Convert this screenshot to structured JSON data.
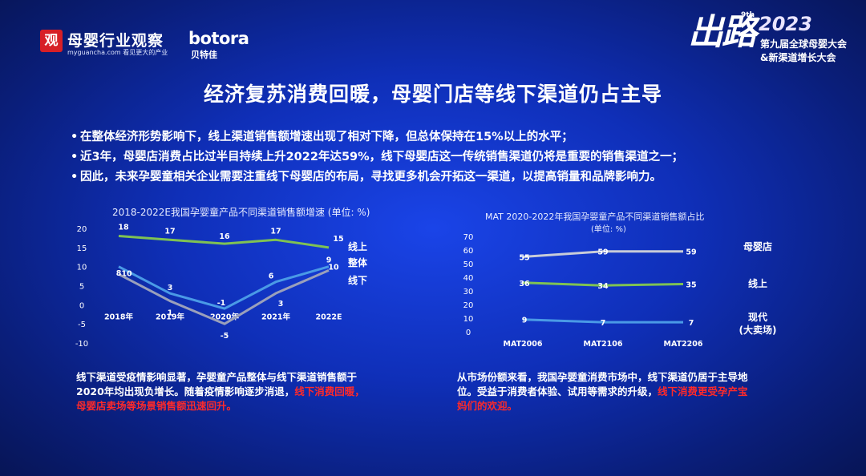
{
  "header": {
    "logo_glyph": "观",
    "logo_title": "母婴行业观察",
    "logo_sub": "myguancha.com 看见更大的产业",
    "brand": "botora",
    "brand_cn": "贝特佳",
    "event_big": "出路",
    "event_9th": "9th",
    "event_year": "2023",
    "event_line1": "第九届全球母婴大会",
    "event_line2": "&新渠道增长大会"
  },
  "title": "经济复苏消费回暖，母婴门店等线下渠道仍占主导",
  "bullets": [
    "在整体经济形势影响下，线上渠道销售额增速出现了相对下降，但总体保持在15%以上的水平；",
    "近3年，母婴店消费占比过半目持续上升2022年达59%，线下母婴店这一传统销售渠道仍将是重要的销售渠道之一；",
    "因此，未来孕婴童相关企业需要注重线下母婴店的布局，寻找更多机会开拓这一渠道，以提高销量和品牌影响力。"
  ],
  "chart_data": [
    {
      "type": "line",
      "title": "2018-2022E我国孕婴童产品不同渠道销售额增速 (单位: %)",
      "categories": [
        "2018年",
        "2019年",
        "2020年",
        "2021年",
        "2022E"
      ],
      "ylim": [
        -10,
        20
      ],
      "yticks": [
        "20",
        "15",
        "10",
        "5",
        "0",
        "-5",
        "-10"
      ],
      "series": [
        {
          "name": "线上",
          "color": "#7fc253",
          "values": [
            18,
            17,
            16,
            17,
            15
          ]
        },
        {
          "name": "整体",
          "color": "#4a9ae6",
          "values": [
            10,
            3,
            -1,
            6,
            10
          ]
        },
        {
          "name": "线下",
          "color": "#9aa0bb",
          "values": [
            8,
            1,
            -5,
            3,
            9
          ]
        }
      ],
      "grid": false,
      "legend": "right"
    },
    {
      "type": "line",
      "title": "MAT 2020-2022年我国孕婴童产品不同渠道销售额占比",
      "subtitle": "(单位: %)",
      "categories": [
        "MAT2006",
        "MAT2106",
        "MAT2206"
      ],
      "ylim": [
        0,
        70
      ],
      "yticks": [
        "70",
        "60",
        "50",
        "40",
        "30",
        "20",
        "10",
        "0"
      ],
      "series": [
        {
          "name": "母婴店",
          "color": "#c8ccd8",
          "values": [
            55,
            59,
            59
          ]
        },
        {
          "name": "线上",
          "color": "#7fc253",
          "values": [
            36,
            34,
            35
          ]
        },
        {
          "name": "现代\n(大卖场)",
          "color": "#4a9ae6",
          "values": [
            9,
            7,
            7
          ]
        }
      ],
      "grid": false,
      "legend": "right"
    }
  ],
  "notes": {
    "left_plain": "线下渠道受疫情影响显著，孕婴童产品整体与线下渠道销售额于2020年均出现负增长。随着疫情影响逐步消退，",
    "left_red": "线下消费回暖，母婴店卖场等场景销售额迅速回升。",
    "right_plain": "从市场份额来看，我国孕婴童消费市场中，线下渠道仍居于主导地位。受益于消费者体验、试用等需求的升级，",
    "right_red": "线下消费更受孕产宝妈们的欢迎。"
  }
}
